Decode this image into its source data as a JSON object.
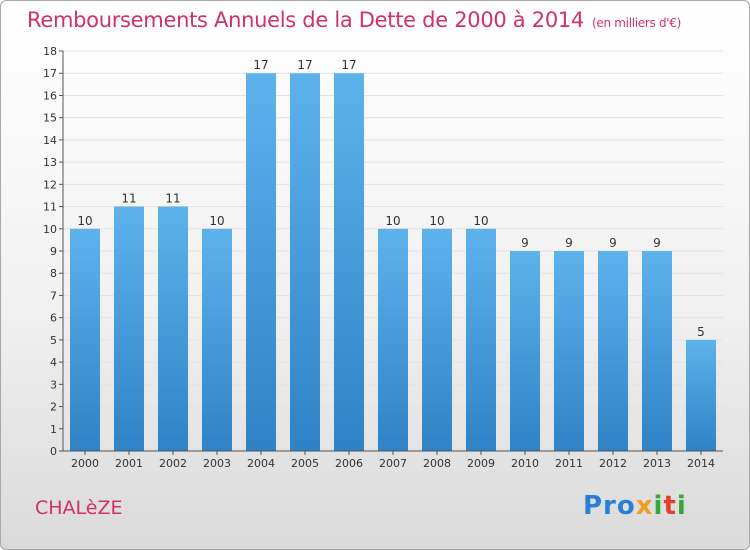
{
  "header": {
    "title": "Remboursements Annuels de la Dette de 2000 à 2014",
    "unit": "(en milliers d'€)"
  },
  "footer": {
    "town": "CHALèZE",
    "logo": {
      "p1": "Pro",
      "p2": "x",
      "p3": "i",
      "p4": "t",
      "p5": "i"
    }
  },
  "colors": {
    "title": "#d1306b",
    "bar_top": "#5eb2ec",
    "bar_bottom": "#2f82c6",
    "grid": "#e3e3e3",
    "axis": "#555555"
  },
  "chart_data": {
    "type": "bar",
    "title": "Remboursements Annuels de la Dette de 2000 à 2014",
    "xlabel": "",
    "ylabel": "",
    "ylim": [
      0,
      18
    ],
    "yticks": [
      0,
      1,
      2,
      3,
      4,
      5,
      6,
      7,
      8,
      9,
      10,
      11,
      12,
      13,
      14,
      15,
      16,
      17,
      18
    ],
    "grid": true,
    "categories": [
      "2000",
      "2001",
      "2002",
      "2003",
      "2004",
      "2005",
      "2006",
      "2007",
      "2008",
      "2009",
      "2010",
      "2011",
      "2012",
      "2013",
      "2014"
    ],
    "values": [
      10,
      11,
      11,
      10,
      17,
      17,
      17,
      10,
      10,
      10,
      9,
      9,
      9,
      9,
      5
    ]
  }
}
